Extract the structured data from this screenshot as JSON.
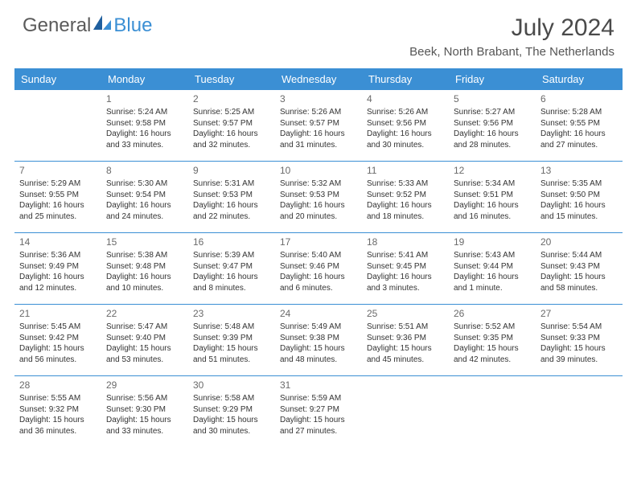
{
  "logo": {
    "text1": "General",
    "text2": "Blue"
  },
  "title": "July 2024",
  "location": "Beek, North Brabant, The Netherlands",
  "colors": {
    "header_blue": "#3b8fd4",
    "logo_gray": "#5a5a5a",
    "logo_blue": "#3b8fd4",
    "text": "#333333",
    "daynum": "#6a6a6a",
    "background": "#ffffff"
  },
  "day_names": [
    "Sunday",
    "Monday",
    "Tuesday",
    "Wednesday",
    "Thursday",
    "Friday",
    "Saturday"
  ],
  "weeks": [
    [
      {
        "n": "",
        "sunrise": "",
        "sunset": "",
        "daylight": ""
      },
      {
        "n": "1",
        "sunrise": "Sunrise: 5:24 AM",
        "sunset": "Sunset: 9:58 PM",
        "daylight": "Daylight: 16 hours and 33 minutes."
      },
      {
        "n": "2",
        "sunrise": "Sunrise: 5:25 AM",
        "sunset": "Sunset: 9:57 PM",
        "daylight": "Daylight: 16 hours and 32 minutes."
      },
      {
        "n": "3",
        "sunrise": "Sunrise: 5:26 AM",
        "sunset": "Sunset: 9:57 PM",
        "daylight": "Daylight: 16 hours and 31 minutes."
      },
      {
        "n": "4",
        "sunrise": "Sunrise: 5:26 AM",
        "sunset": "Sunset: 9:56 PM",
        "daylight": "Daylight: 16 hours and 30 minutes."
      },
      {
        "n": "5",
        "sunrise": "Sunrise: 5:27 AM",
        "sunset": "Sunset: 9:56 PM",
        "daylight": "Daylight: 16 hours and 28 minutes."
      },
      {
        "n": "6",
        "sunrise": "Sunrise: 5:28 AM",
        "sunset": "Sunset: 9:55 PM",
        "daylight": "Daylight: 16 hours and 27 minutes."
      }
    ],
    [
      {
        "n": "7",
        "sunrise": "Sunrise: 5:29 AM",
        "sunset": "Sunset: 9:55 PM",
        "daylight": "Daylight: 16 hours and 25 minutes."
      },
      {
        "n": "8",
        "sunrise": "Sunrise: 5:30 AM",
        "sunset": "Sunset: 9:54 PM",
        "daylight": "Daylight: 16 hours and 24 minutes."
      },
      {
        "n": "9",
        "sunrise": "Sunrise: 5:31 AM",
        "sunset": "Sunset: 9:53 PM",
        "daylight": "Daylight: 16 hours and 22 minutes."
      },
      {
        "n": "10",
        "sunrise": "Sunrise: 5:32 AM",
        "sunset": "Sunset: 9:53 PM",
        "daylight": "Daylight: 16 hours and 20 minutes."
      },
      {
        "n": "11",
        "sunrise": "Sunrise: 5:33 AM",
        "sunset": "Sunset: 9:52 PM",
        "daylight": "Daylight: 16 hours and 18 minutes."
      },
      {
        "n": "12",
        "sunrise": "Sunrise: 5:34 AM",
        "sunset": "Sunset: 9:51 PM",
        "daylight": "Daylight: 16 hours and 16 minutes."
      },
      {
        "n": "13",
        "sunrise": "Sunrise: 5:35 AM",
        "sunset": "Sunset: 9:50 PM",
        "daylight": "Daylight: 16 hours and 15 minutes."
      }
    ],
    [
      {
        "n": "14",
        "sunrise": "Sunrise: 5:36 AM",
        "sunset": "Sunset: 9:49 PM",
        "daylight": "Daylight: 16 hours and 12 minutes."
      },
      {
        "n": "15",
        "sunrise": "Sunrise: 5:38 AM",
        "sunset": "Sunset: 9:48 PM",
        "daylight": "Daylight: 16 hours and 10 minutes."
      },
      {
        "n": "16",
        "sunrise": "Sunrise: 5:39 AM",
        "sunset": "Sunset: 9:47 PM",
        "daylight": "Daylight: 16 hours and 8 minutes."
      },
      {
        "n": "17",
        "sunrise": "Sunrise: 5:40 AM",
        "sunset": "Sunset: 9:46 PM",
        "daylight": "Daylight: 16 hours and 6 minutes."
      },
      {
        "n": "18",
        "sunrise": "Sunrise: 5:41 AM",
        "sunset": "Sunset: 9:45 PM",
        "daylight": "Daylight: 16 hours and 3 minutes."
      },
      {
        "n": "19",
        "sunrise": "Sunrise: 5:43 AM",
        "sunset": "Sunset: 9:44 PM",
        "daylight": "Daylight: 16 hours and 1 minute."
      },
      {
        "n": "20",
        "sunrise": "Sunrise: 5:44 AM",
        "sunset": "Sunset: 9:43 PM",
        "daylight": "Daylight: 15 hours and 58 minutes."
      }
    ],
    [
      {
        "n": "21",
        "sunrise": "Sunrise: 5:45 AM",
        "sunset": "Sunset: 9:42 PM",
        "daylight": "Daylight: 15 hours and 56 minutes."
      },
      {
        "n": "22",
        "sunrise": "Sunrise: 5:47 AM",
        "sunset": "Sunset: 9:40 PM",
        "daylight": "Daylight: 15 hours and 53 minutes."
      },
      {
        "n": "23",
        "sunrise": "Sunrise: 5:48 AM",
        "sunset": "Sunset: 9:39 PM",
        "daylight": "Daylight: 15 hours and 51 minutes."
      },
      {
        "n": "24",
        "sunrise": "Sunrise: 5:49 AM",
        "sunset": "Sunset: 9:38 PM",
        "daylight": "Daylight: 15 hours and 48 minutes."
      },
      {
        "n": "25",
        "sunrise": "Sunrise: 5:51 AM",
        "sunset": "Sunset: 9:36 PM",
        "daylight": "Daylight: 15 hours and 45 minutes."
      },
      {
        "n": "26",
        "sunrise": "Sunrise: 5:52 AM",
        "sunset": "Sunset: 9:35 PM",
        "daylight": "Daylight: 15 hours and 42 minutes."
      },
      {
        "n": "27",
        "sunrise": "Sunrise: 5:54 AM",
        "sunset": "Sunset: 9:33 PM",
        "daylight": "Daylight: 15 hours and 39 minutes."
      }
    ],
    [
      {
        "n": "28",
        "sunrise": "Sunrise: 5:55 AM",
        "sunset": "Sunset: 9:32 PM",
        "daylight": "Daylight: 15 hours and 36 minutes."
      },
      {
        "n": "29",
        "sunrise": "Sunrise: 5:56 AM",
        "sunset": "Sunset: 9:30 PM",
        "daylight": "Daylight: 15 hours and 33 minutes."
      },
      {
        "n": "30",
        "sunrise": "Sunrise: 5:58 AM",
        "sunset": "Sunset: 9:29 PM",
        "daylight": "Daylight: 15 hours and 30 minutes."
      },
      {
        "n": "31",
        "sunrise": "Sunrise: 5:59 AM",
        "sunset": "Sunset: 9:27 PM",
        "daylight": "Daylight: 15 hours and 27 minutes."
      },
      {
        "n": "",
        "sunrise": "",
        "sunset": "",
        "daylight": ""
      },
      {
        "n": "",
        "sunrise": "",
        "sunset": "",
        "daylight": ""
      },
      {
        "n": "",
        "sunrise": "",
        "sunset": "",
        "daylight": ""
      }
    ]
  ]
}
